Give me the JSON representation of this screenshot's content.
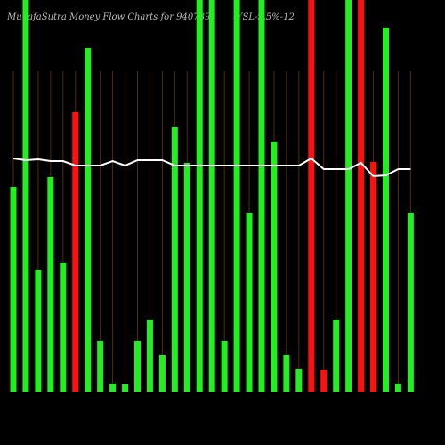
{
  "chart_data": {
    "type": "bar",
    "title": "MunafaSutra  Money Flow  Charts for 940789",
    "subtitle": "(YSL-9.5%-12",
    "categories": [
      null,
      null,
      null,
      null,
      null,
      null,
      null,
      null,
      null,
      null,
      null,
      null,
      null,
      null,
      null,
      null,
      null,
      null,
      null,
      null,
      null,
      null,
      null,
      null,
      null,
      null,
      null,
      null,
      null,
      null,
      null,
      null,
      null
    ],
    "ylim": [
      0,
      440
    ],
    "series": [
      {
        "type": "bar",
        "colors": [
          "#22ee22",
          "#22ee22",
          "#22ee22",
          "#22ee22",
          "#22ee22",
          "#ff1010",
          "#22ee22",
          "#22ee22",
          "#22ee22",
          "#22ee22",
          "#22ee22",
          "#22ee22",
          "#22ee22",
          "#22ee22",
          "#22ee22",
          "#22ee22",
          "#22ee22",
          "#22ee22",
          "#22ee22",
          "#22ee22",
          "#22ee22",
          "#22ee22",
          "#22ee22",
          "#22ee22",
          "#ff1010",
          "#ff1010",
          "#22ee22",
          "#22ee22",
          "#ff1010",
          "#ff1010",
          "#22ee22",
          "#22ee22",
          "#22ee22"
        ],
        "values": [
          230,
          450,
          137,
          241,
          145,
          314,
          386,
          57,
          9,
          8,
          57,
          81,
          41,
          297,
          257,
          450,
          450,
          57,
          450,
          201,
          450,
          281,
          41,
          25,
          450,
          24,
          81,
          450,
          450,
          258,
          409,
          9,
          201
        ]
      },
      {
        "type": "line",
        "color": "#ffffff",
        "values": [
          262,
          260,
          261,
          259,
          259,
          254,
          254,
          254,
          259,
          254,
          260,
          260,
          260,
          254,
          254,
          254,
          254,
          254,
          254,
          254,
          254,
          254,
          254,
          254,
          262,
          250,
          250,
          250,
          257,
          242,
          243,
          250,
          250
        ]
      }
    ]
  }
}
